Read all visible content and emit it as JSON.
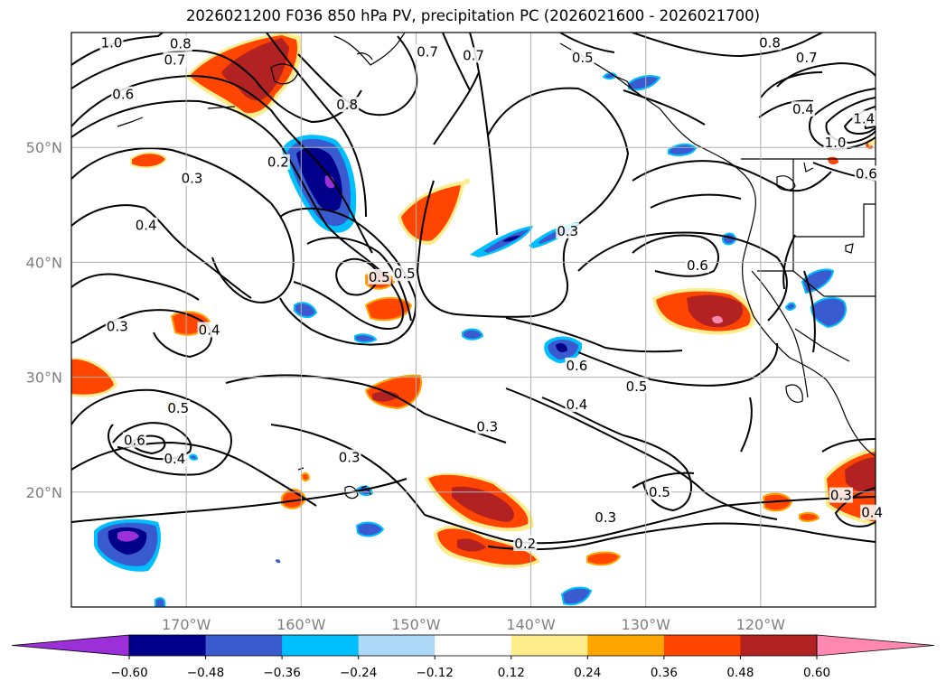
{
  "title": "2026021200 F036 850 hPa PV, precipitation PC (2026021600 - 2026021700)",
  "map": {
    "lon_range": [
      -180,
      -110
    ],
    "lat_range": [
      10,
      60
    ],
    "lat_ticks": [
      {
        "value": 20,
        "label": "20°N"
      },
      {
        "value": 30,
        "label": "30°N"
      },
      {
        "value": 40,
        "label": "40°N"
      },
      {
        "value": 50,
        "label": "50°N"
      }
    ],
    "lon_ticks": [
      {
        "value": -170,
        "label": "170°W"
      },
      {
        "value": -160,
        "label": "160°W"
      },
      {
        "value": -150,
        "label": "150°W"
      },
      {
        "value": -140,
        "label": "140°W"
      },
      {
        "value": -130,
        "label": "130°W"
      },
      {
        "value": -120,
        "label": "120°W"
      }
    ],
    "grid": true
  },
  "colorbar": {
    "colors": [
      "#9b30d8",
      "#00008b",
      "#3a5bd0",
      "#00bfff",
      "#add8f7",
      "#ffffff",
      "#ffec8b",
      "#ffa500",
      "#ff4500",
      "#b22222",
      "#ff88b0"
    ],
    "ticks": [
      "−0.60",
      "−0.48",
      "−0.36",
      "−0.24",
      "−0.12",
      "0.12",
      "0.24",
      "0.36",
      "0.48",
      "0.60"
    ]
  },
  "contour_labels": [
    {
      "text": "1.0",
      "lon": -176.5,
      "lat": 59.1
    },
    {
      "text": "0.8",
      "lon": -170.5,
      "lat": 59.0
    },
    {
      "text": "0.7",
      "lon": -171.0,
      "lat": 57.6
    },
    {
      "text": "0.6",
      "lon": -175.5,
      "lat": 54.6
    },
    {
      "text": "0.8",
      "lon": -156.0,
      "lat": 53.7
    },
    {
      "text": "0.7",
      "lon": -149.0,
      "lat": 58.3
    },
    {
      "text": "0.7",
      "lon": -145.0,
      "lat": 58.0
    },
    {
      "text": "0.5",
      "lon": -135.5,
      "lat": 57.8
    },
    {
      "text": "0.8",
      "lon": -119.2,
      "lat": 59.1
    },
    {
      "text": "0.7",
      "lon": -116.0,
      "lat": 57.8
    },
    {
      "text": "0.4",
      "lon": -116.3,
      "lat": 53.3
    },
    {
      "text": "1.0",
      "lon": -113.5,
      "lat": 50.4
    },
    {
      "text": "1.4",
      "lon": -111.0,
      "lat": 52.5
    },
    {
      "text": "0.6",
      "lon": -110.8,
      "lat": 47.7
    },
    {
      "text": "0.2",
      "lon": -162.0,
      "lat": 48.7
    },
    {
      "text": "0.3",
      "lon": -169.5,
      "lat": 47.3
    },
    {
      "text": "0.4",
      "lon": -173.5,
      "lat": 43.2
    },
    {
      "text": "0.3",
      "lon": -176.0,
      "lat": 34.4
    },
    {
      "text": "0.4",
      "lon": -168.0,
      "lat": 34.1
    },
    {
      "text": "0.5",
      "lon": -153.2,
      "lat": 38.7
    },
    {
      "text": "0.5",
      "lon": -151.0,
      "lat": 39.0
    },
    {
      "text": "0.3",
      "lon": -136.8,
      "lat": 42.7
    },
    {
      "text": "0.6",
      "lon": -125.5,
      "lat": 39.7
    },
    {
      "text": "0.6",
      "lon": -136.0,
      "lat": 31.0
    },
    {
      "text": "0.5",
      "lon": -130.8,
      "lat": 29.2
    },
    {
      "text": "0.4",
      "lon": -136.0,
      "lat": 27.6
    },
    {
      "text": "0.3",
      "lon": -143.8,
      "lat": 25.7
    },
    {
      "text": "0.5",
      "lon": -170.7,
      "lat": 27.3
    },
    {
      "text": "0.6",
      "lon": -174.5,
      "lat": 24.5
    },
    {
      "text": "0.4",
      "lon": -171.0,
      "lat": 22.9
    },
    {
      "text": "0.3",
      "lon": -155.8,
      "lat": 23.0
    },
    {
      "text": "0.5",
      "lon": -128.8,
      "lat": 20.0
    },
    {
      "text": "0.3",
      "lon": -133.5,
      "lat": 17.8
    },
    {
      "text": "0.2",
      "lon": -140.5,
      "lat": 15.5
    },
    {
      "text": "0.3",
      "lon": -113.0,
      "lat": 19.7
    },
    {
      "text": "0.4",
      "lon": -110.3,
      "lat": 18.2
    }
  ]
}
